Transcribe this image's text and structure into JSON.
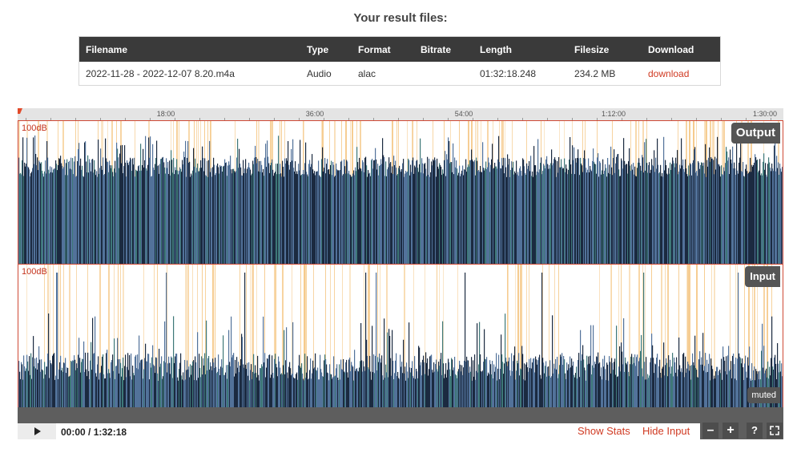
{
  "heading": "Your result files:",
  "table": {
    "headers": [
      "Filename",
      "Type",
      "Format",
      "Bitrate",
      "Length",
      "Filesize",
      "Download"
    ],
    "rows": [
      {
        "filename": "2022-11-28 - 2022-12-07 8.20.m4a",
        "type": "Audio",
        "format": "alac",
        "bitrate": "",
        "length": "01:32:18.248",
        "filesize": "234.2 MB",
        "download": "download"
      }
    ]
  },
  "player": {
    "timeline_ticks": [
      "18:00",
      "36:00",
      "54:00",
      "1:12:00",
      "1:30:00"
    ],
    "output": {
      "label": "Output",
      "db": "100dB"
    },
    "input": {
      "label": "Input",
      "db": "100dB",
      "muted": "muted"
    },
    "time_display": "00:00 / 1:32:18",
    "show_stats": "Show Stats",
    "hide_input": "Hide Input",
    "zoom_out": "–",
    "zoom_in": "+",
    "help": "?",
    "colors": {
      "accent": "#d03a22",
      "wave_dark": "#1b2a40",
      "wave_blue": "#52729a",
      "wave_teal": "#3e7878",
      "highlight": "#f5c98a"
    }
  }
}
